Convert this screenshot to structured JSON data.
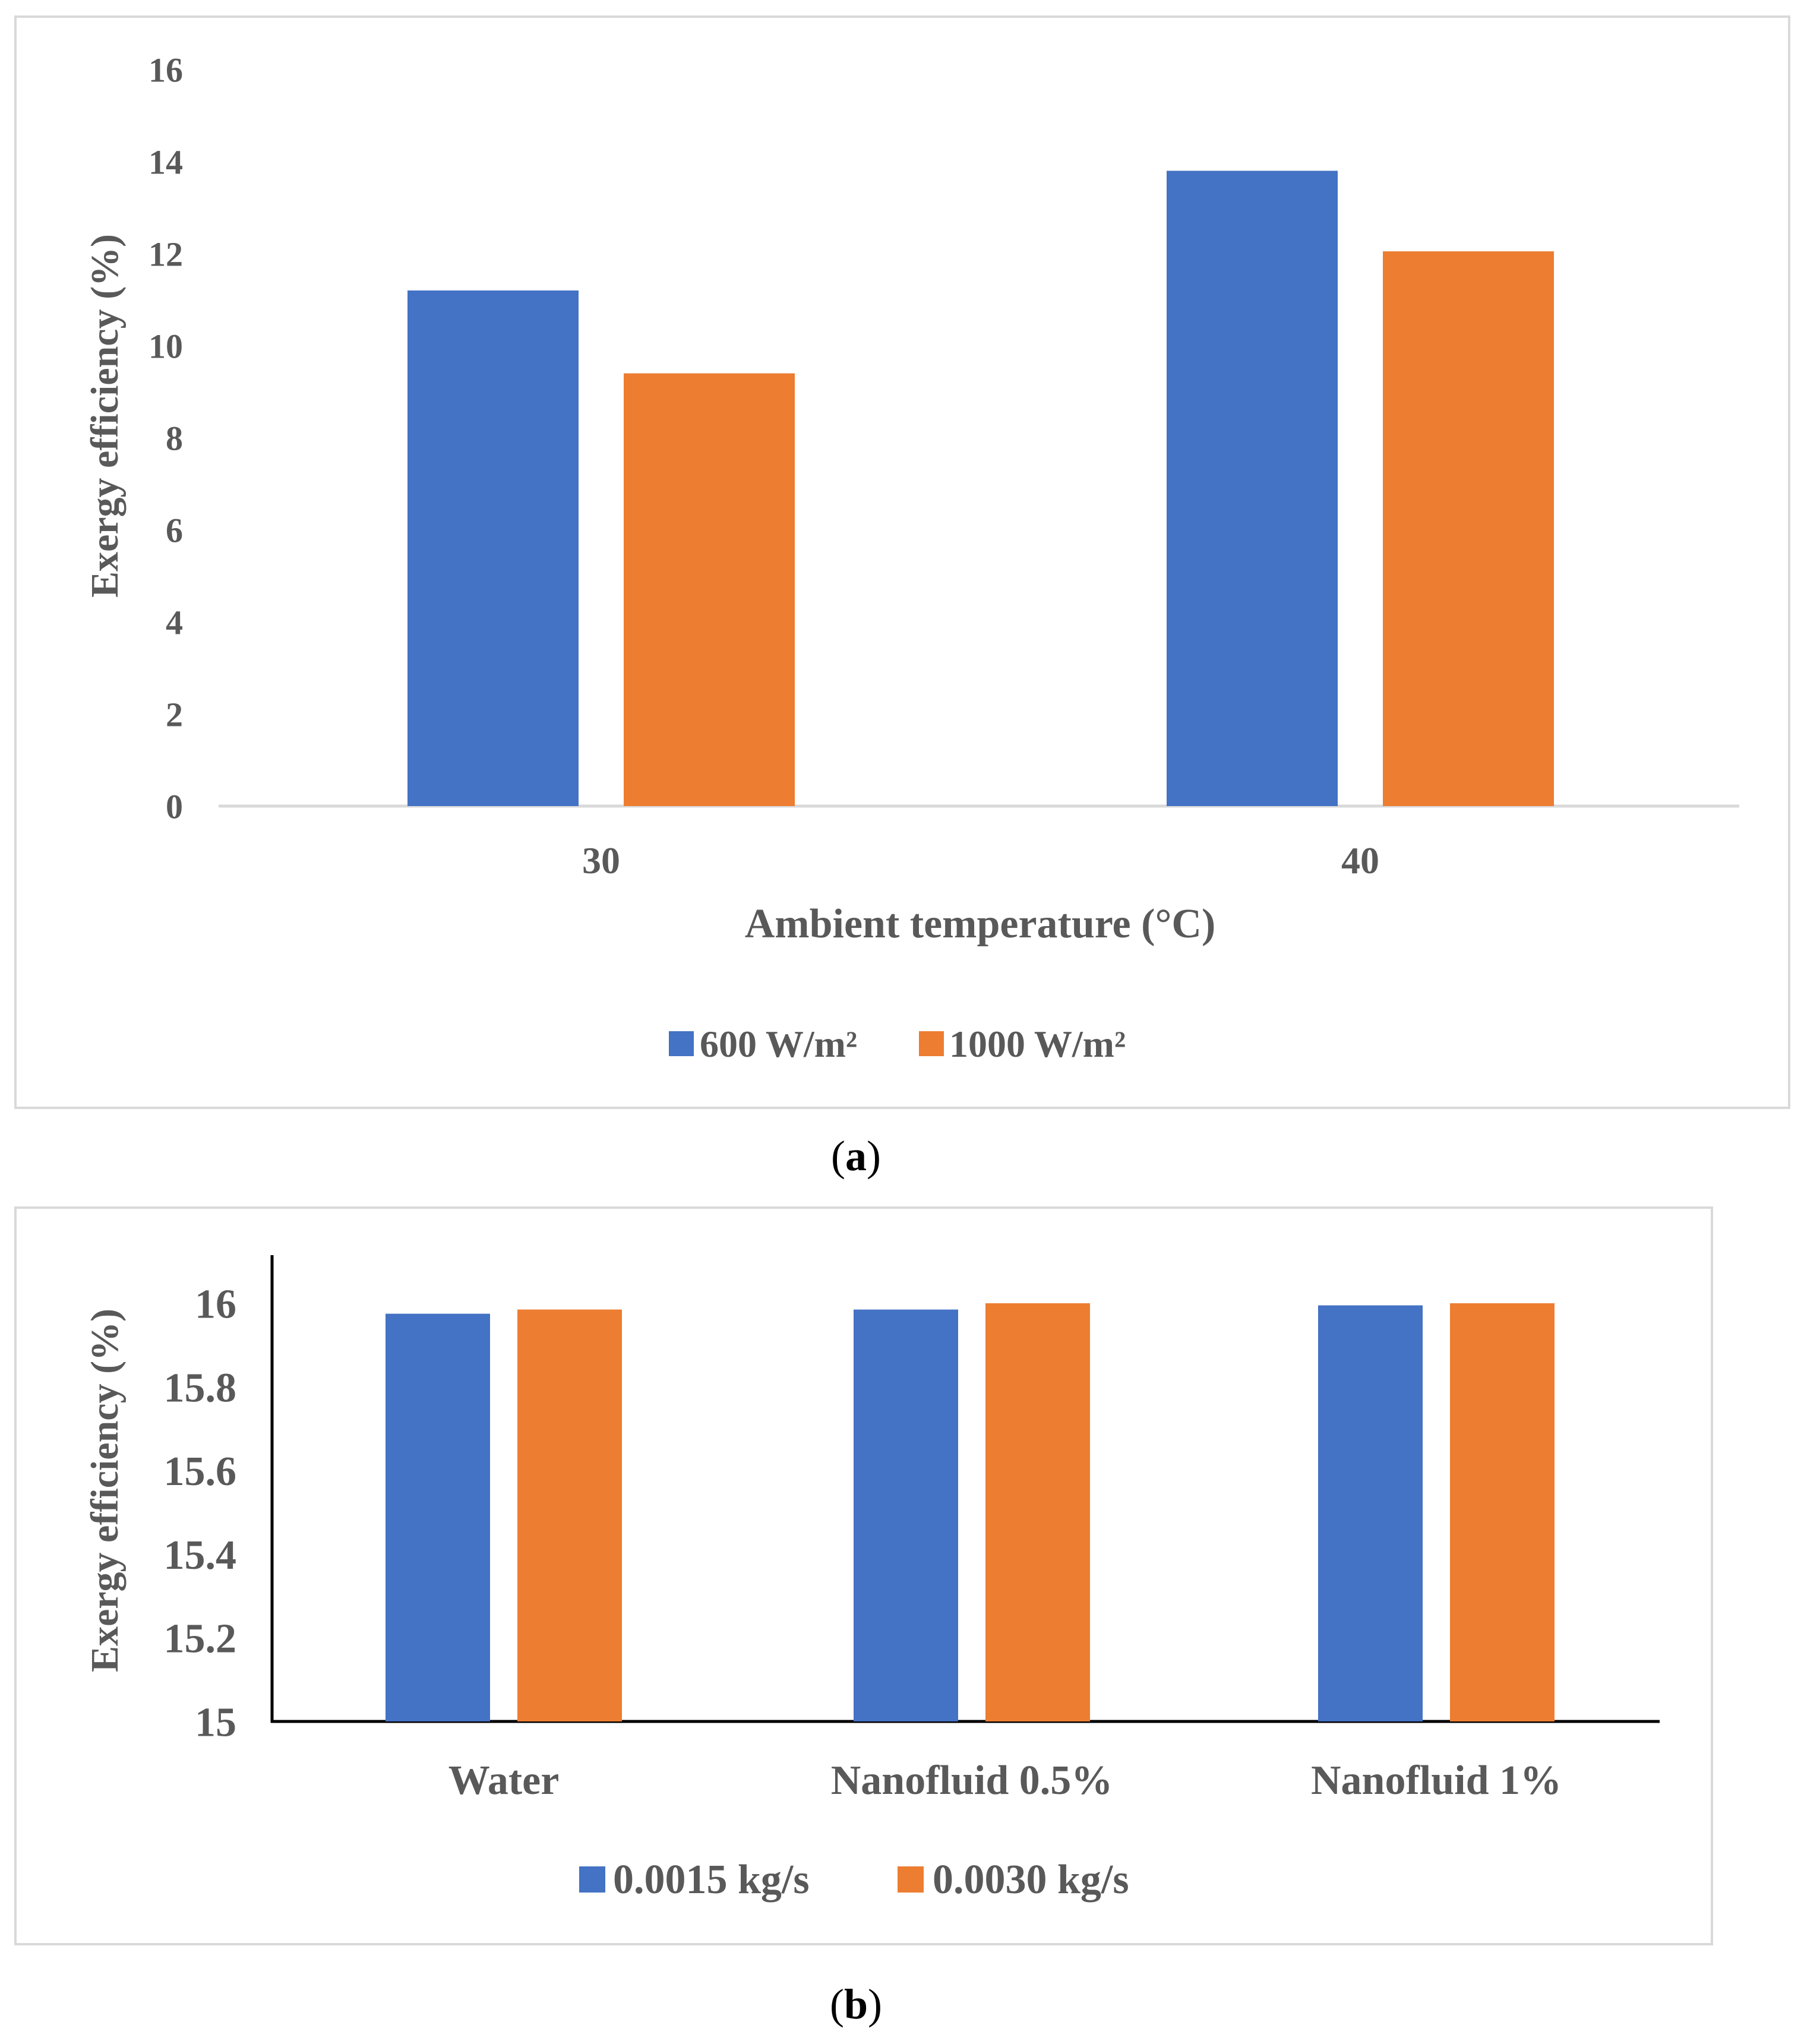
{
  "colors": {
    "series1": "#4472C4",
    "series2": "#ED7D31",
    "text": "#595959",
    "frame": "#D9D9D9",
    "axis_a": "#D9D9D9",
    "axis_b": "#000000"
  },
  "chart_data": [
    {
      "id": "a",
      "type": "bar",
      "title": "",
      "xlabel": "Ambient temperature (°C)",
      "ylabel": "Exergy efficiency (%)",
      "categories": [
        "30",
        "40"
      ],
      "series": [
        {
          "name": "600 W/m²",
          "values": [
            11.2,
            13.8
          ]
        },
        {
          "name": "1000 W/m²",
          "values": [
            9.4,
            12.05
          ]
        }
      ],
      "ylim": [
        0,
        16
      ],
      "yticks": [
        "0",
        "2",
        "4",
        "6",
        "8",
        "10",
        "12",
        "14",
        "16"
      ],
      "grid": false,
      "legend": "bottom",
      "caption": {
        "open": "(",
        "label": "a",
        "close": ")"
      }
    },
    {
      "id": "b",
      "type": "bar",
      "title": "",
      "xlabel": "",
      "ylabel": "Exergy efficiency (%)",
      "categories": [
        "Water",
        "Nanofluid 0.5%",
        "Nanofluid 1%"
      ],
      "series": [
        {
          "name": "0.0015 kg/s",
          "values": [
            15.975,
            15.985,
            15.995
          ]
        },
        {
          "name": "0.0030 kg/s",
          "values": [
            15.985,
            16.0,
            16.0
          ]
        }
      ],
      "ylim": [
        15,
        16.1
      ],
      "yticks": [
        "15",
        "15.2",
        "15.4",
        "15.6",
        "15.8",
        "16"
      ],
      "grid": false,
      "legend": "bottom",
      "caption": {
        "open": "(",
        "label": "b",
        "close": ")"
      }
    }
  ]
}
